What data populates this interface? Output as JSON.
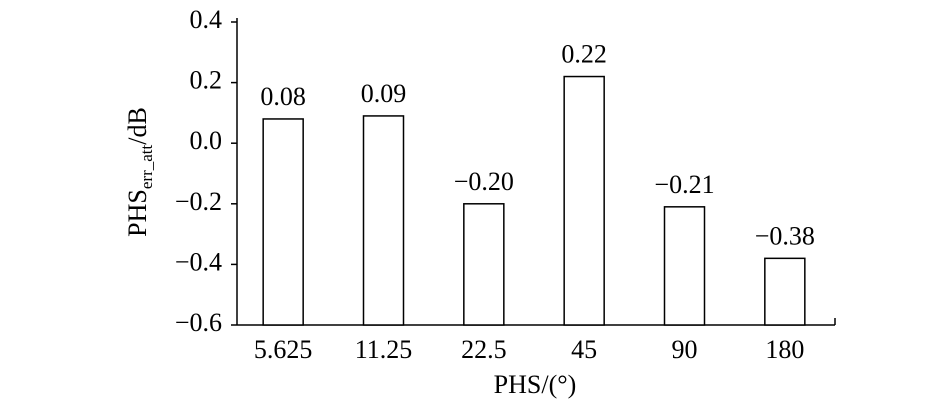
{
  "chart_data": {
    "type": "bar",
    "categories": [
      "5.625",
      "11.25",
      "22.5",
      "45",
      "90",
      "180"
    ],
    "values": [
      0.08,
      0.09,
      -0.2,
      0.22,
      -0.21,
      -0.38
    ],
    "value_labels": [
      "0.08",
      "0.09",
      "−0.20",
      "0.22",
      "−0.21",
      "−0.38"
    ],
    "color": "#ffffff",
    "ylim": [
      -0.6,
      0.4
    ],
    "yticks": [
      {
        "value": -0.6,
        "label": "−0.6"
      },
      {
        "value": -0.4,
        "label": "−0.4"
      },
      {
        "value": -0.2,
        "label": "−0.2"
      },
      {
        "value": 0,
        "label": "0.0"
      },
      0.2,
      0.4
    ],
    "x_label": "PHS/(°)",
    "y_label": {
      "main": "PHS",
      "sub": "err_att",
      "unit": "/dB"
    },
    "grid": false
  }
}
